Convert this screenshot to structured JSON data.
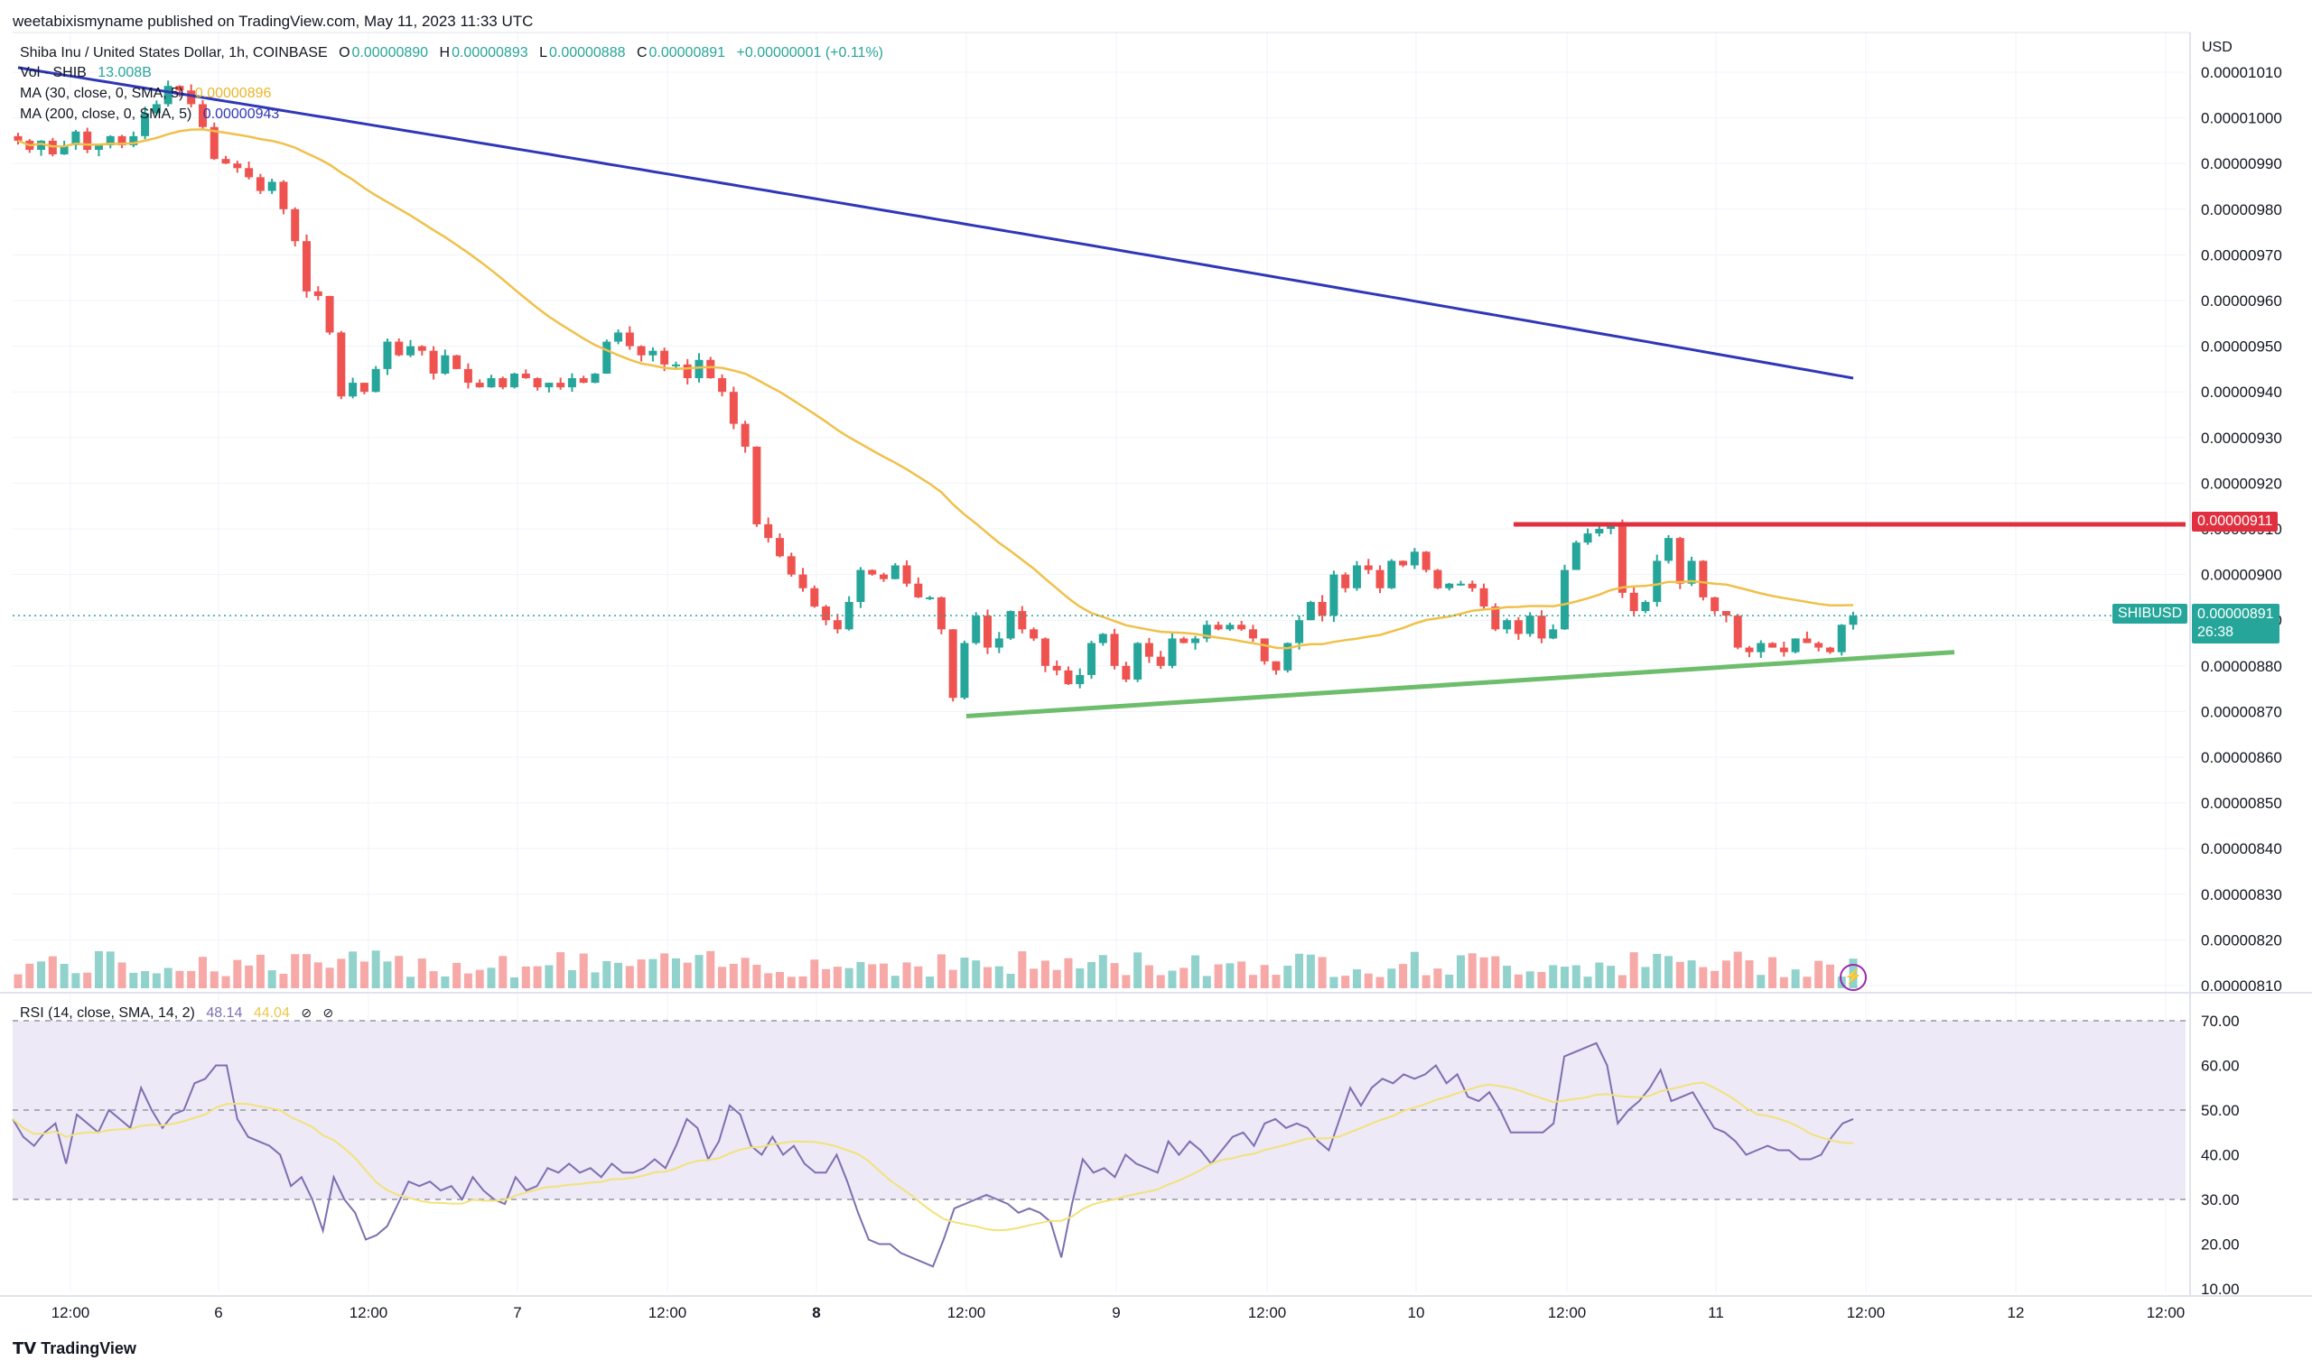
{
  "publish_line": "weetabixismyname published on TradingView.com, May 11, 2023 11:33 UTC",
  "header": {
    "symbol": "Shiba Inu / United States Dollar, 1h, COINBASE",
    "o_label": "O",
    "o_val": "0.00000890",
    "h_label": "H",
    "h_val": "0.00000893",
    "l_label": "L",
    "l_val": "0.00000888",
    "c_label": "C",
    "c_val": "0.00000891",
    "change": "+0.00000001 (+0.11%)",
    "vol_label": "Vol · SHIB",
    "vol_val": "13.008B",
    "ma30_label": "MA (30, close, 0, SMA, 5)",
    "ma30_val": "0.00000896",
    "ma200_label": "MA (200, close, 0, SMA, 5)",
    "ma200_val": "0.00000943"
  },
  "rsi_header": {
    "label": "RSI (14, close, SMA, 14, 2)",
    "rsi_val": "48.14",
    "sma_val": "44.04"
  },
  "price_axis": {
    "currency": "USD",
    "ticks": [
      "0.00001010",
      "0.00001000",
      "0.00000990",
      "0.00000980",
      "0.00000970",
      "0.00000960",
      "0.00000950",
      "0.00000940",
      "0.00000930",
      "0.00000920",
      "0.00000910",
      "0.00000900",
      "0.00000890",
      "0.00000880",
      "0.00000870",
      "0.00000860",
      "0.00000850",
      "0.00000840",
      "0.00000830",
      "0.00000820",
      "0.00000810"
    ],
    "resistance_label": "0.00000911",
    "symbol_tag": "SHIBUSD",
    "last_price": "0.00000891",
    "countdown": "26:38"
  },
  "rsi_axis": {
    "ticks": [
      "70.00",
      "60.00",
      "50.00",
      "40.00",
      "30.00",
      "20.00",
      "10.00"
    ]
  },
  "time_axis": [
    "12:00",
    "6",
    "12:00",
    "7",
    "12:00",
    "8",
    "12:00",
    "9",
    "12:00",
    "10",
    "12:00",
    "11",
    "12:00",
    "12",
    "12:00"
  ],
  "brand": "TradingView",
  "colors": {
    "up": "#26a69a",
    "down": "#ef5350",
    "ma30": "#f0c04a",
    "ma200": "#2f36b8",
    "resistance": "#e0303f",
    "support": "#6dbd6d",
    "rsi": "#7e6fb0"
  },
  "chart_data": [
    {
      "type": "candlestick",
      "title": "Shiba Inu / United States Dollar, 1h, COINBASE",
      "ylabel": "USD",
      "ylim": [
        8.05e-06,
        1.015e-05
      ],
      "closes": [
        9.95e-06,
        9.93e-06,
        9.95e-06,
        9.92e-06,
        9.94e-06,
        9.97e-06,
        9.93e-06,
        9.94e-06,
        9.96e-06,
        9.94e-06,
        9.96e-06,
        1.001e-05,
        1.003e-05,
        1.007e-05,
        1.006e-05,
        1.003e-05,
        9.98e-06,
        9.91e-06,
        9.9e-06,
        9.89e-06,
        9.87e-06,
        9.84e-06,
        9.86e-06,
        9.8e-06,
        9.73e-06,
        9.62e-06,
        9.61e-06,
        9.53e-06,
        9.39e-06,
        9.42e-06,
        9.4e-06,
        9.45e-06,
        9.51e-06,
        9.48e-06,
        9.5e-06,
        9.49e-06,
        9.44e-06,
        9.48e-06,
        9.45e-06,
        9.42e-06,
        9.41e-06,
        9.43e-06,
        9.41e-06,
        9.44e-06,
        9.43e-06,
        9.41e-06,
        9.42e-06,
        9.41e-06,
        9.43e-06,
        9.42e-06,
        9.44e-06,
        9.51e-06,
        9.53e-06,
        9.5e-06,
        9.48e-06,
        9.49e-06,
        9.46e-06,
        9.46e-06,
        9.43e-06,
        9.47e-06,
        9.43e-06,
        9.4e-06,
        9.33e-06,
        9.28e-06,
        9.11e-06,
        9.08e-06,
        9.04e-06,
        9e-06,
        8.97e-06,
        8.93e-06,
        8.9e-06,
        8.88e-06,
        8.94e-06,
        9.01e-06,
        9e-06,
        8.99e-06,
        9.02e-06,
        8.98e-06,
        8.95e-06,
        8.95e-06,
        8.88e-06,
        8.73e-06,
        8.85e-06,
        8.91e-06,
        8.84e-06,
        8.86e-06,
        8.92e-06,
        8.88e-06,
        8.86e-06,
        8.8e-06,
        8.79e-06,
        8.76e-06,
        8.78e-06,
        8.85e-06,
        8.87e-06,
        8.8e-06,
        8.77e-06,
        8.85e-06,
        8.82e-06,
        8.8e-06,
        8.86e-06,
        8.85e-06,
        8.86e-06,
        8.89e-06,
        8.88e-06,
        8.89e-06,
        8.88e-06,
        8.86e-06,
        8.81e-06,
        8.79e-06,
        8.85e-06,
        8.9e-06,
        8.94e-06,
        8.91e-06,
        9e-06,
        8.97e-06,
        9.02e-06,
        9.01e-06,
        8.97e-06,
        9.03e-06,
        9.02e-06,
        9.05e-06,
        9.01e-06,
        8.97e-06,
        8.98e-06,
        8.98e-06,
        8.97e-06,
        8.93e-06,
        8.88e-06,
        8.9e-06,
        8.87e-06,
        8.91e-06,
        8.86e-06,
        8.88e-06,
        9.01e-06,
        9.07e-06,
        9.09e-06,
        9.1e-06,
        9.11e-06,
        8.96e-06,
        8.92e-06,
        8.94e-06,
        9.03e-06,
        9.08e-06,
        8.98e-06,
        9.03e-06,
        8.95e-06,
        8.92e-06,
        8.91e-06,
        8.84e-06,
        8.83e-06,
        8.85e-06,
        8.84e-06,
        8.83e-06,
        8.86e-06,
        8.85e-06,
        8.84e-06,
        8.83e-06,
        8.89e-06,
        8.91e-06
      ],
      "series": [
        {
          "name": "MA (30, close, 0, SMA, 5)",
          "latest": 8.96e-06
        },
        {
          "name": "MA (200, close, 0, SMA, 5)",
          "latest": 9.43e-06
        }
      ],
      "annotations": [
        {
          "type": "horizontal-line",
          "label": "resistance",
          "y": 9.11e-06
        },
        {
          "type": "trend-line",
          "label": "support",
          "from_y": 8.69e-06,
          "to_y": 8.83e-06
        }
      ]
    },
    {
      "type": "bar",
      "title": "Vol · SHIB",
      "latest": "13.008B"
    },
    {
      "type": "line",
      "title": "RSI (14, close, SMA, 14, 2)",
      "ylim": [
        10,
        70
      ],
      "series": [
        {
          "name": "RSI",
          "latest": 48.14,
          "values": [
            48,
            44,
            42,
            45,
            47,
            38,
            49,
            47,
            45,
            50,
            48,
            46,
            55,
            50,
            46,
            49,
            50,
            56,
            57,
            60,
            60,
            48,
            44,
            43,
            42,
            40,
            33,
            35,
            30,
            23,
            35,
            30,
            27,
            21,
            22,
            24,
            29,
            34,
            33,
            34,
            32,
            33,
            30,
            35,
            32,
            30,
            29,
            35,
            32,
            33,
            37,
            36,
            38,
            36,
            37,
            35,
            38,
            36,
            36,
            37,
            39,
            37,
            42,
            48,
            46,
            39,
            43,
            51,
            49,
            42,
            40,
            44,
            40,
            42,
            38,
            36,
            36,
            40,
            34,
            27,
            21,
            20,
            20,
            18,
            17,
            16,
            15,
            21,
            28,
            29,
            30,
            31,
            30,
            29,
            27,
            28,
            27,
            25,
            17,
            29,
            39,
            36,
            37,
            35,
            40,
            38,
            37,
            36,
            43,
            40,
            43,
            41,
            38,
            41,
            44,
            45,
            42,
            47,
            48,
            46,
            47,
            46,
            43,
            41,
            48,
            55,
            51,
            55,
            57,
            56,
            58,
            57,
            58,
            60,
            56,
            58,
            53,
            52,
            54,
            50,
            45,
            45,
            45,
            45,
            47,
            62,
            63,
            64,
            65,
            60,
            47,
            50,
            52,
            55,
            59,
            52,
            53,
            54,
            50,
            46,
            45,
            43,
            40,
            41,
            42,
            41,
            41,
            39,
            39,
            40,
            44,
            47,
            48
          ]
        },
        {
          "name": "SMA",
          "latest": 44.04
        }
      ],
      "guides": [
        70,
        50,
        30
      ]
    }
  ]
}
